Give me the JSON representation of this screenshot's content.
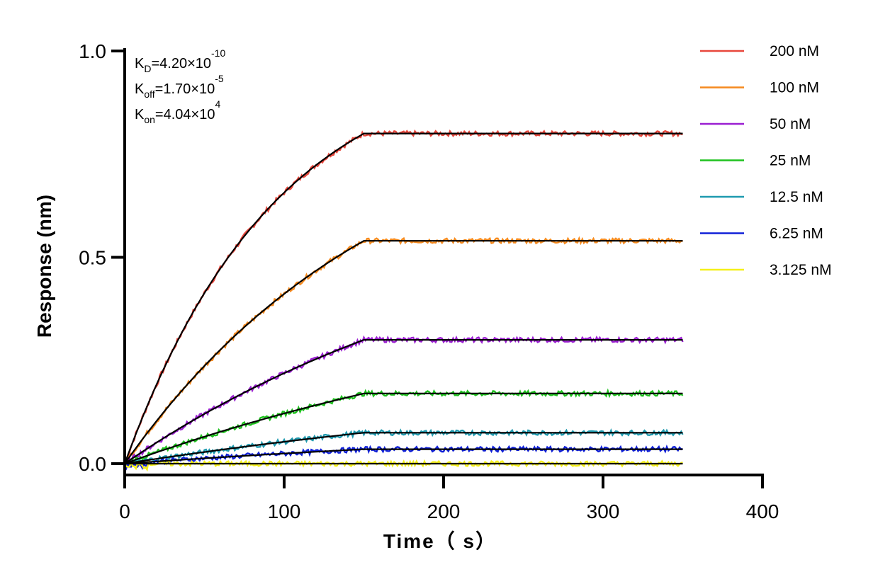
{
  "chart_data": {
    "type": "line",
    "xlabel": "Time（ s）",
    "ylabel": "Response (nm)",
    "xlim": [
      0,
      400
    ],
    "ylim": [
      0,
      1.0
    ],
    "x_ticks": [
      0,
      100,
      200,
      300,
      400
    ],
    "x_tick_labels": [
      "0",
      "100",
      "200",
      "300",
      "400"
    ],
    "y_ticks": [
      0,
      0.5,
      1.0
    ],
    "y_tick_labels": [
      "0.0",
      "0.5",
      "1.0"
    ],
    "association_end": 150,
    "dissociation_end": 350,
    "grid": false,
    "legend_position": "top-right",
    "annotations": [
      {
        "name": "kd",
        "base": "K",
        "sub": "D",
        "mid": "=4.20×10",
        "sup": "-10"
      },
      {
        "name": "koff",
        "base": "K",
        "sub": "off",
        "mid": "=1.70×10",
        "sup": "-5"
      },
      {
        "name": "kon",
        "base": "K",
        "sub": "on",
        "mid": "=4.04×10",
        "sup": "4"
      }
    ],
    "series": [
      {
        "name": "200 nM",
        "color": "#e8473c",
        "plateau": 0.8,
        "k_obs": 0.0106
      },
      {
        "name": "100 nM",
        "color": "#f58a1f",
        "plateau": 0.54,
        "k_obs": 0.0061
      },
      {
        "name": "50 nM",
        "color": "#9b1fd1",
        "plateau": 0.3,
        "k_obs": 0.004
      },
      {
        "name": "25 nM",
        "color": "#1fc21f",
        "plateau": 0.17,
        "k_obs": 0.003
      },
      {
        "name": "12.5 nM",
        "color": "#1f9aaf",
        "plateau": 0.075,
        "k_obs": 0.0025
      },
      {
        "name": "6.25 nM",
        "color": "#1020d8",
        "plateau": 0.035,
        "k_obs": 0.0022
      },
      {
        "name": "3.125 nM",
        "color": "#f5f01a",
        "plateau": 0.0,
        "k_obs": 0.002
      }
    ],
    "fit_color": "#000000"
  }
}
